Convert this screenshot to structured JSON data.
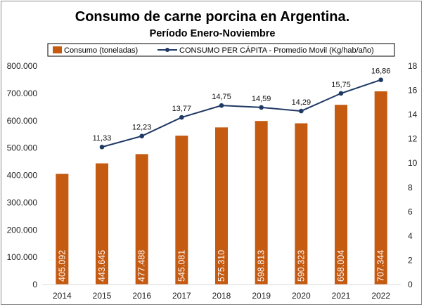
{
  "chart_data": {
    "type": "bar",
    "title": "Consumo de carne porcina en Argentina.",
    "subtitle": "Período Enero-Noviembre",
    "categories": [
      "2014",
      "2015",
      "2016",
      "2017",
      "2018",
      "2019",
      "2020",
      "2021",
      "2022"
    ],
    "series": [
      {
        "name": "Consumo (toneladas)",
        "type": "bar",
        "axis": "left",
        "color": "#c55a11",
        "values": [
          405092,
          443645,
          477488,
          545081,
          575310,
          598813,
          590323,
          658004,
          707344
        ],
        "labels": [
          "405.092",
          "443.645",
          "477.488",
          "545.081",
          "575.310",
          "598.813",
          "590.323",
          "658.004",
          "707.344"
        ]
      },
      {
        "name": "CONSUMO PER CÁPITA - Promedio Movil (Kg/hab/año)",
        "type": "line",
        "axis": "right",
        "color": "#1f3864",
        "values": [
          null,
          11.33,
          12.23,
          13.77,
          14.75,
          14.59,
          14.29,
          15.75,
          16.86
        ],
        "labels": [
          "",
          "11,33",
          "12,23",
          "13,77",
          "14,75",
          "14,59",
          "14,29",
          "15,75",
          "16,86"
        ]
      }
    ],
    "y_left": {
      "ylim": [
        0,
        800000
      ],
      "ticks": [
        0,
        100000,
        200000,
        300000,
        400000,
        500000,
        600000,
        700000,
        800000
      ],
      "tick_labels": [
        "0",
        "100.000",
        "200.000",
        "300.000",
        "400.000",
        "500.000",
        "600.000",
        "700.000",
        "800.000"
      ]
    },
    "y_right": {
      "ylim": [
        0,
        18
      ],
      "ticks": [
        0,
        2,
        4,
        6,
        8,
        10,
        12,
        14,
        16,
        18
      ],
      "tick_labels": [
        "0",
        "2",
        "4",
        "6",
        "8",
        "10",
        "12",
        "14",
        "16",
        "18"
      ]
    },
    "grid": false,
    "legend": "top"
  }
}
